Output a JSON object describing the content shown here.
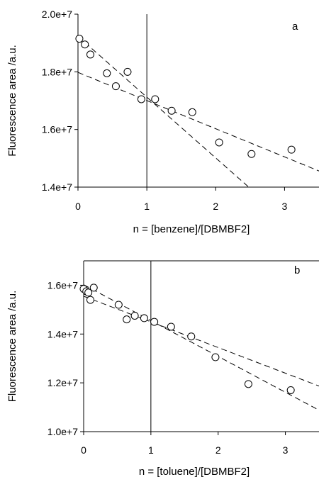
{
  "chart_data": [
    {
      "type": "scatter",
      "panel_label": "a",
      "xlabel": "n = [benzene]/[DBMBF2]",
      "ylabel": "Fluorescence area /a.u.",
      "xlim": [
        0,
        3.5
      ],
      "ylim": [
        14000000,
        20000000
      ],
      "x_ticks": [
        0,
        1,
        2,
        3
      ],
      "x_tick_labels": [
        "0",
        "1",
        "2",
        "3"
      ],
      "y_ticks": [
        14000000,
        16000000,
        18000000,
        20000000
      ],
      "y_tick_labels": [
        "1.4e+7",
        "1.6e+7",
        "1.8e+7",
        "2.0e+7"
      ],
      "reference_line_x": 1,
      "points": [
        {
          "x": 0.02,
          "y": 19150000
        },
        {
          "x": 0.1,
          "y": 18950000
        },
        {
          "x": 0.18,
          "y": 18600000
        },
        {
          "x": 0.42,
          "y": 17950000
        },
        {
          "x": 0.55,
          "y": 17500000
        },
        {
          "x": 0.72,
          "y": 18000000
        },
        {
          "x": 0.92,
          "y": 17050000
        },
        {
          "x": 1.12,
          "y": 17050000
        },
        {
          "x": 1.36,
          "y": 16650000
        },
        {
          "x": 1.66,
          "y": 16600000
        },
        {
          "x": 2.05,
          "y": 15550000
        },
        {
          "x": 2.52,
          "y": 15150000
        },
        {
          "x": 3.1,
          "y": 15300000
        }
      ],
      "fit_lines": [
        {
          "x": [
            0,
            3.5
          ],
          "y": [
            17980000,
            14560000
          ]
        },
        {
          "x": [
            0,
            2.48
          ],
          "y": [
            19230000,
            14000000
          ]
        }
      ]
    },
    {
      "type": "scatter",
      "panel_label": "b",
      "xlabel": "n = [toluene]/[DBMBF2]",
      "ylabel": "Fluorescence area /a.u.",
      "xlim": [
        0,
        3.5
      ],
      "ylim": [
        10000000,
        17000000
      ],
      "x_ticks": [
        0,
        1,
        2,
        3
      ],
      "x_tick_labels": [
        "0",
        "1",
        "2",
        "3"
      ],
      "y_ticks": [
        10000000,
        12000000,
        14000000,
        16000000
      ],
      "y_tick_labels": [
        "1.0e+7",
        "1.2e+7",
        "1.4e+7",
        "1.6e+7"
      ],
      "reference_line_x": 1,
      "points": [
        {
          "x": 0.0,
          "y": 15850000
        },
        {
          "x": 0.04,
          "y": 15750000
        },
        {
          "x": 0.07,
          "y": 15700000
        },
        {
          "x": 0.1,
          "y": 15400000
        },
        {
          "x": 0.15,
          "y": 15900000
        },
        {
          "x": 0.52,
          "y": 15200000
        },
        {
          "x": 0.64,
          "y": 14600000
        },
        {
          "x": 0.76,
          "y": 14750000
        },
        {
          "x": 0.9,
          "y": 14650000
        },
        {
          "x": 1.05,
          "y": 14500000
        },
        {
          "x": 1.3,
          "y": 14300000
        },
        {
          "x": 1.6,
          "y": 13900000
        },
        {
          "x": 1.96,
          "y": 13050000
        },
        {
          "x": 2.45,
          "y": 11950000
        },
        {
          "x": 3.08,
          "y": 11700000
        }
      ],
      "fit_lines": [
        {
          "x": [
            0,
            3.5
          ],
          "y": [
            15550000,
            11870000
          ]
        },
        {
          "x": [
            0,
            3.5
          ],
          "y": [
            16020000,
            10880000
          ]
        }
      ]
    }
  ]
}
